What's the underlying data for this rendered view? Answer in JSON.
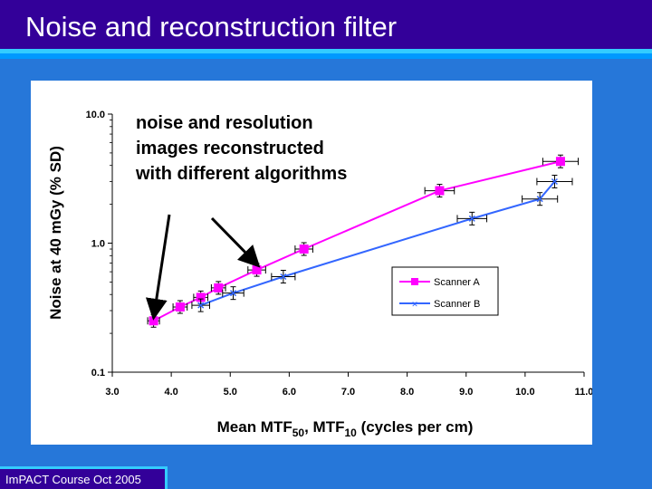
{
  "slide": {
    "title": "Noise and reconstruction filter",
    "footer": "ImPACT Course Oct 2005",
    "colors": {
      "background": "#2677d9",
      "title_bar": "#330099",
      "accent_stripe": "#33ccff"
    }
  },
  "chart_data": {
    "type": "scatter",
    "xlabel_main": "Mean MTF",
    "xlabel_sub1": "50",
    "xlabel_mid": ", MTF",
    "xlabel_sub2": "10",
    "xlabel_tail": " (cycles per cm)",
    "ylabel": "Noise at 40 mGy (% SD)",
    "xlim": [
      3.0,
      11.0
    ],
    "ylim": [
      0.1,
      10.0
    ],
    "yscale": "log",
    "x_ticks": [
      "3.0",
      "4.0",
      "5.0",
      "6.0",
      "7.0",
      "8.0",
      "9.0",
      "10.0",
      "11.0"
    ],
    "y_ticks": [
      "0.1",
      "1.0",
      "10.0"
    ],
    "annotation": [
      "noise and resolution",
      "images reconstructed",
      "with different algorithms"
    ],
    "legend_position": "right",
    "series": [
      {
        "name": "Scanner A",
        "color": "#ff00ff",
        "marker": "square",
        "points": [
          {
            "x": 3.7,
            "y": 0.25,
            "xerr": 0.1
          },
          {
            "x": 4.15,
            "y": 0.32,
            "xerr": 0.12
          },
          {
            "x": 4.5,
            "y": 0.38,
            "xerr": 0.12
          },
          {
            "x": 4.8,
            "y": 0.45,
            "xerr": 0.12
          },
          {
            "x": 5.45,
            "y": 0.62,
            "xerr": 0.15
          },
          {
            "x": 6.25,
            "y": 0.9,
            "xerr": 0.15
          },
          {
            "x": 8.55,
            "y": 2.55,
            "xerr": 0.25
          },
          {
            "x": 10.6,
            "y": 4.3,
            "xerr": 0.3
          }
        ]
      },
      {
        "name": "Scanner B",
        "color": "#3366ff",
        "marker": "x",
        "points": [
          {
            "x": 4.5,
            "y": 0.33,
            "xerr": 0.15
          },
          {
            "x": 5.05,
            "y": 0.41,
            "xerr": 0.18
          },
          {
            "x": 5.9,
            "y": 0.55,
            "xerr": 0.2
          },
          {
            "x": 9.1,
            "y": 1.55,
            "xerr": 0.25
          },
          {
            "x": 10.25,
            "y": 2.2,
            "xerr": 0.3
          },
          {
            "x": 10.5,
            "y": 3.0,
            "xerr": 0.3
          }
        ]
      }
    ]
  }
}
